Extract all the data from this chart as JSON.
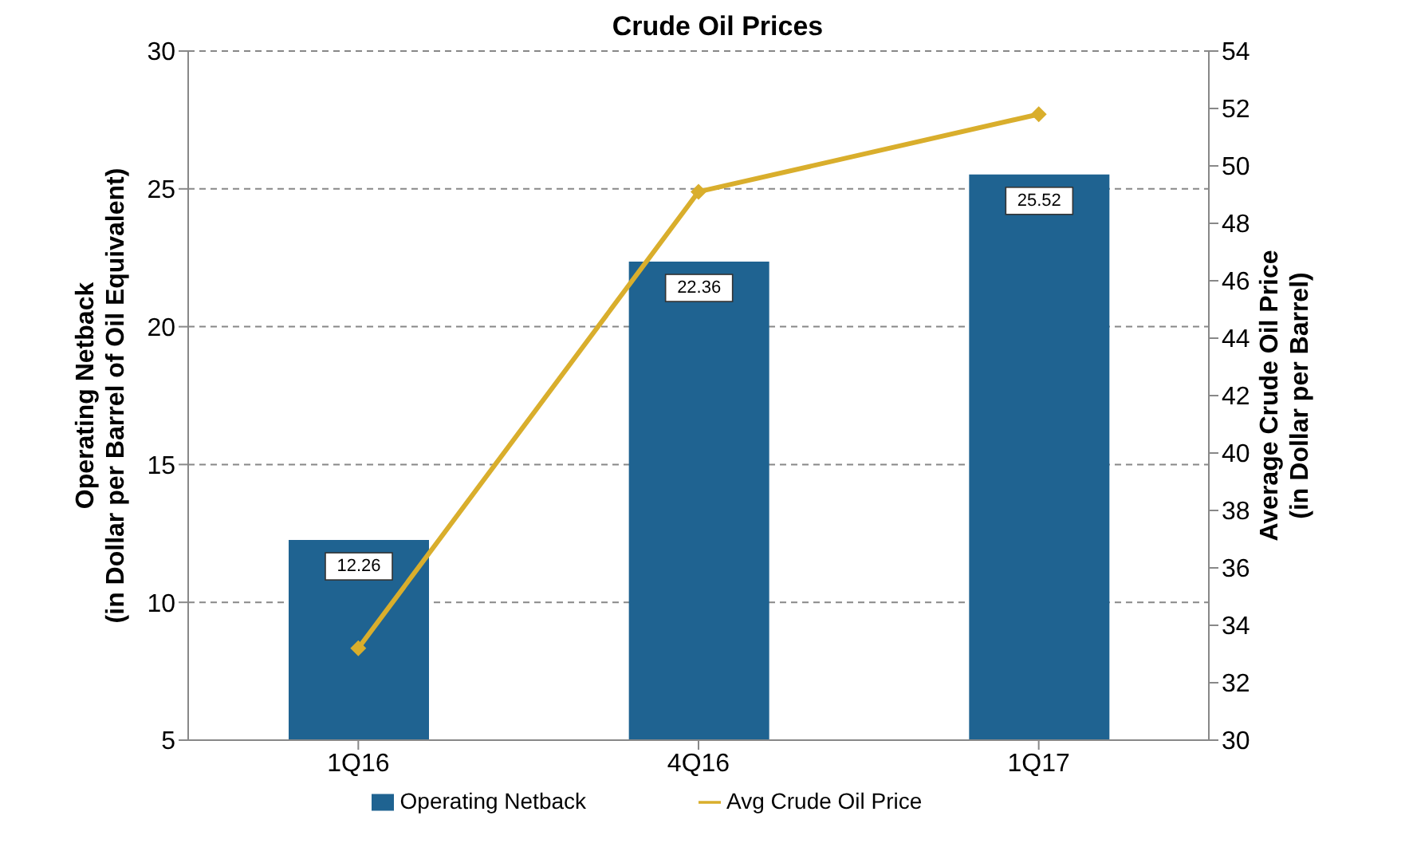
{
  "chart_data": {
    "type": "bar",
    "title": "Crude Oil Prices",
    "ylabel": "Operating Netback\n(in Dollar per Barrel of Oil Equivalent)",
    "y2label": "Average Crude Oil Price\n(in Dollar per Barrel)",
    "categories": [
      "1Q16",
      "4Q16",
      "1Q17"
    ],
    "series": [
      {
        "name": "Operating Netback",
        "color": "#1f6391",
        "values": [
          12.26,
          22.36,
          25.52
        ],
        "data_labels": true
      },
      {
        "name": "Avg Crude Oil Price",
        "type": "line",
        "axis": "y2",
        "color": "#d9ae2c",
        "values": [
          33.2,
          49.1,
          51.8
        ],
        "marker": "diamond"
      }
    ],
    "ylim": [
      5,
      30
    ],
    "yticks": [
      5,
      10,
      15,
      20,
      25,
      30
    ],
    "y2lim": [
      30,
      54
    ],
    "y2ticks": [
      30,
      32,
      34,
      36,
      38,
      40,
      42,
      44,
      46,
      48,
      50,
      52,
      54
    ],
    "grid": "y",
    "legend": "bottom"
  }
}
